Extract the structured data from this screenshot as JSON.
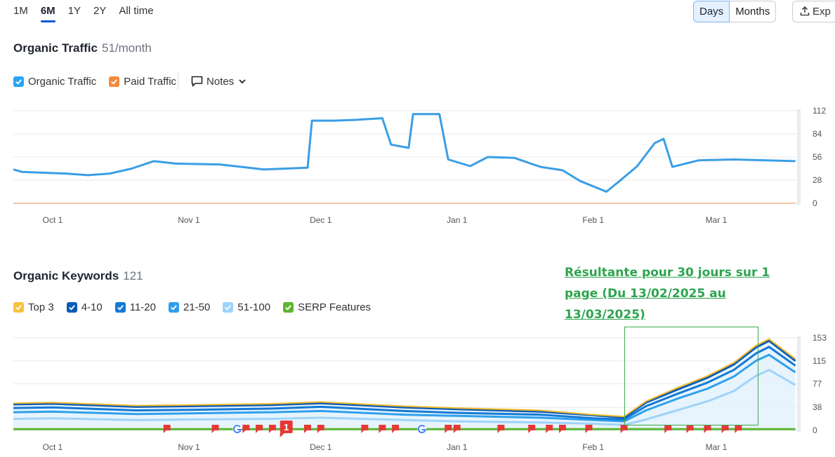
{
  "period_tabs": [
    {
      "label": "1M",
      "active": false
    },
    {
      "label": "6M",
      "active": true
    },
    {
      "label": "1Y",
      "active": false
    },
    {
      "label": "2Y",
      "active": false
    },
    {
      "label": "All time",
      "active": false
    }
  ],
  "granularity": {
    "days": "Days",
    "months": "Months",
    "active": "Days"
  },
  "export_label": "Exp",
  "traffic": {
    "title": "Organic Traffic",
    "value": "51/month",
    "legend": [
      {
        "label": "Organic Traffic",
        "color": "#2aa4f4",
        "checked": true
      },
      {
        "label": "Paid Traffic",
        "color": "#f58a3a",
        "checked": true
      }
    ],
    "notes_label": "Notes"
  },
  "keywords": {
    "title": "Organic Keywords",
    "value": "121",
    "legend": [
      {
        "label": "Top 3",
        "color": "#f9c23c",
        "checked": true
      },
      {
        "label": "4-10",
        "color": "#0a5bb8",
        "checked": true
      },
      {
        "label": "11-20",
        "color": "#1479d6",
        "checked": true
      },
      {
        "label": "21-50",
        "color": "#2ea0ec",
        "checked": true
      },
      {
        "label": "51-100",
        "color": "#9fd3fa",
        "checked": true
      },
      {
        "label": "SERP Features",
        "color": "#5cb531",
        "checked": true
      }
    ]
  },
  "annotation": {
    "text": "Résultante pour 30 jours sur 1 page (Du 13/02/2025 au 13/03/2025)"
  },
  "chart_data": [
    {
      "type": "line",
      "title": "Organic Traffic",
      "x_ticks": [
        "Oct 1",
        "Nov 1",
        "Dec 1",
        "Jan 1",
        "Feb 1",
        "Mar 1"
      ],
      "y_ticks": [
        112,
        84,
        56,
        28,
        0
      ],
      "ylim": [
        0,
        112
      ],
      "grid": true,
      "series": [
        {
          "name": "Organic Traffic",
          "color": "#3a9ee6",
          "points": [
            [
              "Sep 19",
              41
            ],
            [
              "Sep 24",
              38
            ],
            [
              "Oct 4",
              36
            ],
            [
              "Oct 9",
              34
            ],
            [
              "Oct 14",
              36
            ],
            [
              "Oct 19",
              42
            ],
            [
              "Oct 24",
              51
            ],
            [
              "Oct 29",
              48
            ],
            [
              "Nov 8",
              47
            ],
            [
              "Nov 13",
              44
            ],
            [
              "Nov 18",
              41
            ],
            [
              "Nov 23",
              42
            ],
            [
              "Nov 28",
              43
            ],
            [
              "Nov 29",
              100
            ],
            [
              "Dec 4",
              100
            ],
            [
              "Dec 9",
              101
            ],
            [
              "Dec 15",
              103
            ],
            [
              "Dec 17",
              71
            ],
            [
              "Dec 21",
              67
            ],
            [
              "Dec 22",
              108
            ],
            [
              "Dec 28",
              108
            ],
            [
              "Dec 30",
              53
            ],
            [
              "Jan 4",
              45
            ],
            [
              "Jan 8",
              56
            ],
            [
              "Jan 14",
              55
            ],
            [
              "Jan 20",
              44
            ],
            [
              "Jan 25",
              40
            ],
            [
              "Jan 29",
              27
            ],
            [
              "Feb 4",
              14
            ],
            [
              "Feb 7",
              27
            ],
            [
              "Feb 11",
              45
            ],
            [
              "Feb 15",
              73
            ],
            [
              "Feb 17",
              78
            ],
            [
              "Feb 19",
              44
            ],
            [
              "Feb 25",
              52
            ],
            [
              "Mar 5",
              53
            ],
            [
              "Mar 19",
              51
            ]
          ]
        },
        {
          "name": "Paid Traffic",
          "color": "#f3c4a9",
          "points": [
            [
              "Sep 19",
              0
            ],
            [
              "Mar 19",
              0
            ]
          ]
        }
      ]
    },
    {
      "type": "area",
      "title": "Organic Keywords",
      "x_ticks": [
        "Oct 1",
        "Nov 1",
        "Dec 1",
        "Jan 1",
        "Feb 1",
        "Mar 1"
      ],
      "y_ticks": [
        153,
        115,
        77,
        38,
        0
      ],
      "ylim": [
        0,
        153
      ],
      "grid": true,
      "x": [
        "Sep 19",
        "Oct 1",
        "Oct 20",
        "Nov 1",
        "Nov 20",
        "Dec 1",
        "Dec 20",
        "Jan 1",
        "Jan 20",
        "Feb 1",
        "Feb 8",
        "Feb 13",
        "Feb 20",
        "Feb 27",
        "Mar 5",
        "Mar 10",
        "Mar 13",
        "Mar 19"
      ],
      "series": [
        {
          "name": "Top 3",
          "color": "#f2b929",
          "values": [
            45,
            46,
            41,
            42,
            44,
            47,
            40,
            37,
            33,
            26,
            23,
            48,
            70,
            90,
            112,
            140,
            151,
            118
          ]
        },
        {
          "name": "4-10",
          "color": "#0a5bb8",
          "values": [
            43,
            44,
            39,
            40,
            42,
            45,
            38,
            35,
            31,
            25,
            21,
            46,
            67,
            87,
            109,
            137,
            148,
            115
          ]
        },
        {
          "name": "11-20",
          "color": "#1479d6",
          "values": [
            37,
            38,
            33,
            34,
            36,
            39,
            32,
            29,
            26,
            20,
            18,
            40,
            60,
            79,
            100,
            127,
            138,
            107
          ]
        },
        {
          "name": "21-50",
          "color": "#2ea0ec",
          "values": [
            30,
            31,
            27,
            28,
            30,
            32,
            26,
            24,
            21,
            17,
            15,
            33,
            52,
            69,
            89,
            115,
            125,
            96
          ]
        },
        {
          "name": "51-100",
          "color": "#9fd3fa",
          "values": [
            19,
            20,
            17,
            18,
            19,
            21,
            17,
            15,
            13,
            11,
            9,
            18,
            33,
            48,
            65,
            90,
            100,
            75
          ]
        },
        {
          "name": "SERP Features",
          "color": "#5cb531",
          "values": [
            2,
            2,
            2,
            2,
            2,
            2,
            2,
            2,
            2,
            2,
            2,
            2,
            2,
            2,
            2,
            2,
            2,
            2
          ]
        }
      ],
      "markers": [
        {
          "type": "flag",
          "date": "Oct 27"
        },
        {
          "type": "flag",
          "date": "Nov 7"
        },
        {
          "type": "google",
          "date": "Nov 12"
        },
        {
          "type": "flag",
          "date": "Nov 14"
        },
        {
          "type": "flag",
          "date": "Nov 17"
        },
        {
          "type": "flag",
          "date": "Nov 20"
        },
        {
          "type": "badge",
          "date": "Nov 23",
          "label": "1"
        },
        {
          "type": "flag",
          "date": "Nov 28"
        },
        {
          "type": "flag",
          "date": "Dec 1"
        },
        {
          "type": "flag",
          "date": "Dec 11"
        },
        {
          "type": "flag",
          "date": "Dec 15"
        },
        {
          "type": "flag",
          "date": "Dec 18"
        },
        {
          "type": "google",
          "date": "Dec 24"
        },
        {
          "type": "flag",
          "date": "Dec 30"
        },
        {
          "type": "flag",
          "date": "Jan 1"
        },
        {
          "type": "flag",
          "date": "Jan 11"
        },
        {
          "type": "flag",
          "date": "Jan 18"
        },
        {
          "type": "flag",
          "date": "Jan 22"
        },
        {
          "type": "flag",
          "date": "Jan 25"
        },
        {
          "type": "flag",
          "date": "Jan 31"
        },
        {
          "type": "flag",
          "date": "Feb 8"
        },
        {
          "type": "flag",
          "date": "Feb 18"
        },
        {
          "type": "flag",
          "date": "Feb 23"
        },
        {
          "type": "flag",
          "date": "Feb 27"
        },
        {
          "type": "flag",
          "date": "Mar 3"
        },
        {
          "type": "flag",
          "date": "Mar 6"
        }
      ]
    }
  ]
}
